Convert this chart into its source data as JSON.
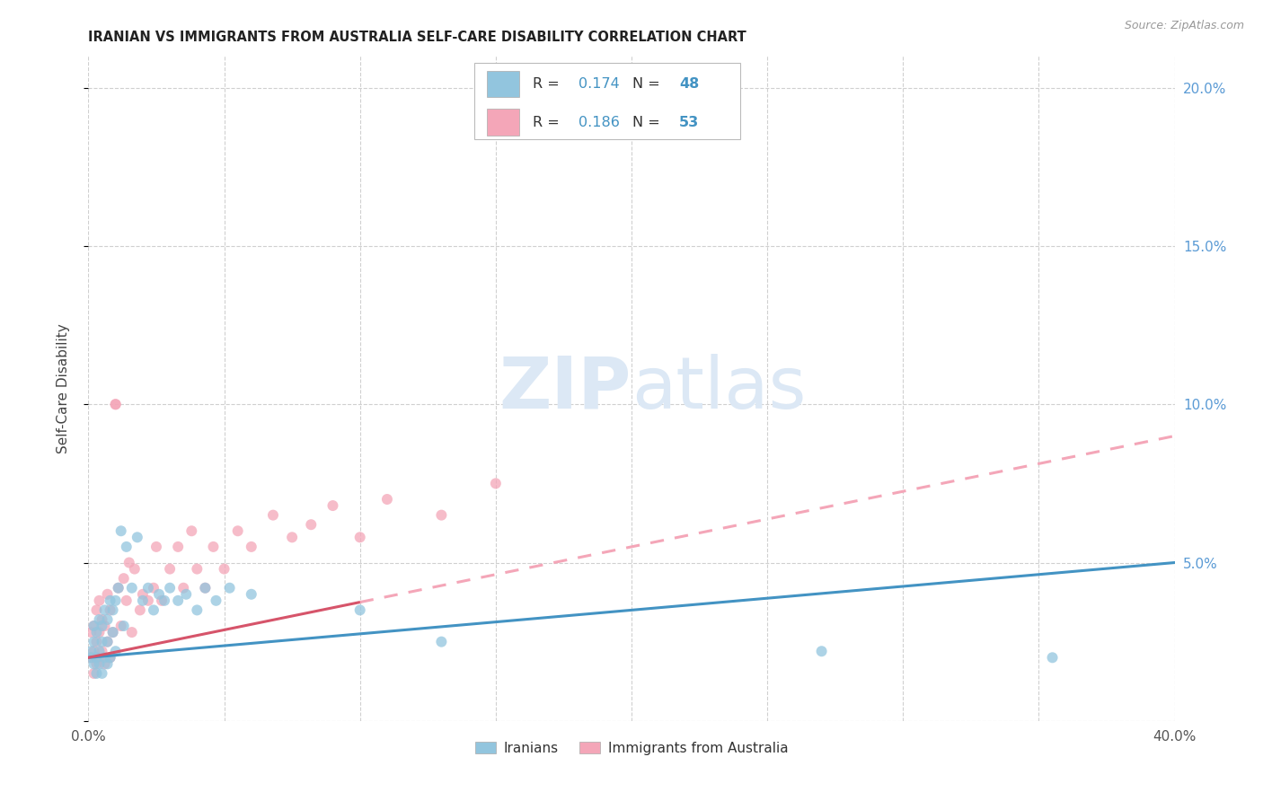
{
  "title": "IRANIAN VS IMMIGRANTS FROM AUSTRALIA SELF-CARE DISABILITY CORRELATION CHART",
  "source": "Source: ZipAtlas.com",
  "ylabel": "Self-Care Disability",
  "legend_blue_r": "0.174",
  "legend_blue_n": "48",
  "legend_pink_r": "0.186",
  "legend_pink_n": "53",
  "legend_label_blue": "Iranians",
  "legend_label_pink": "Immigrants from Australia",
  "blue_color": "#92c5de",
  "pink_color": "#f4a6b8",
  "trend_blue_color": "#4393c3",
  "trend_pink_solid_color": "#d6546a",
  "trend_pink_dash_color": "#f4a6b8",
  "grid_color": "#d0d0d0",
  "title_color": "#222222",
  "axis_label_color": "#444444",
  "right_axis_color": "#5b9bd5",
  "legend_r_color": "#4393c3",
  "legend_n_color": "#4393c3",
  "watermark_color": "#dce8f5",
  "xlim": [
    0.0,
    0.4
  ],
  "ylim": [
    0.0,
    0.21
  ],
  "iranians_x": [
    0.001,
    0.001,
    0.002,
    0.002,
    0.002,
    0.003,
    0.003,
    0.003,
    0.004,
    0.004,
    0.004,
    0.005,
    0.005,
    0.005,
    0.006,
    0.006,
    0.007,
    0.007,
    0.007,
    0.008,
    0.008,
    0.009,
    0.009,
    0.01,
    0.01,
    0.011,
    0.012,
    0.013,
    0.014,
    0.016,
    0.018,
    0.02,
    0.022,
    0.024,
    0.026,
    0.028,
    0.03,
    0.033,
    0.036,
    0.04,
    0.043,
    0.047,
    0.052,
    0.06,
    0.1,
    0.13,
    0.27,
    0.355
  ],
  "iranians_y": [
    0.02,
    0.022,
    0.018,
    0.025,
    0.03,
    0.015,
    0.02,
    0.028,
    0.022,
    0.018,
    0.032,
    0.025,
    0.015,
    0.03,
    0.02,
    0.035,
    0.018,
    0.025,
    0.032,
    0.02,
    0.038,
    0.028,
    0.035,
    0.022,
    0.038,
    0.042,
    0.06,
    0.03,
    0.055,
    0.042,
    0.058,
    0.038,
    0.042,
    0.035,
    0.04,
    0.038,
    0.042,
    0.038,
    0.04,
    0.035,
    0.042,
    0.038,
    0.042,
    0.04,
    0.035,
    0.025,
    0.022,
    0.02
  ],
  "australia_x": [
    0.001,
    0.001,
    0.002,
    0.002,
    0.002,
    0.003,
    0.003,
    0.003,
    0.004,
    0.004,
    0.004,
    0.005,
    0.005,
    0.006,
    0.006,
    0.007,
    0.007,
    0.008,
    0.008,
    0.009,
    0.01,
    0.01,
    0.011,
    0.012,
    0.013,
    0.014,
    0.015,
    0.016,
    0.017,
    0.019,
    0.02,
    0.022,
    0.024,
    0.025,
    0.027,
    0.03,
    0.033,
    0.035,
    0.038,
    0.04,
    0.043,
    0.046,
    0.05,
    0.055,
    0.06,
    0.068,
    0.075,
    0.082,
    0.09,
    0.1,
    0.11,
    0.13,
    0.15
  ],
  "australia_y": [
    0.02,
    0.028,
    0.015,
    0.022,
    0.03,
    0.018,
    0.025,
    0.035,
    0.02,
    0.028,
    0.038,
    0.022,
    0.032,
    0.018,
    0.03,
    0.025,
    0.04,
    0.02,
    0.035,
    0.028,
    0.1,
    0.1,
    0.042,
    0.03,
    0.045,
    0.038,
    0.05,
    0.028,
    0.048,
    0.035,
    0.04,
    0.038,
    0.042,
    0.055,
    0.038,
    0.048,
    0.055,
    0.042,
    0.06,
    0.048,
    0.042,
    0.055,
    0.048,
    0.06,
    0.055,
    0.065,
    0.058,
    0.062,
    0.068,
    0.058,
    0.07,
    0.065,
    0.075
  ],
  "marker_size": 75,
  "trend_linewidth": 2.2,
  "background_color": "#ffffff"
}
